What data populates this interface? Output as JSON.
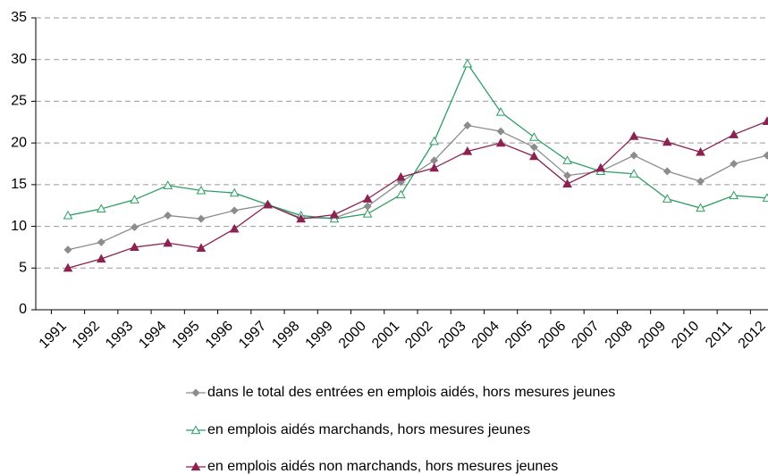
{
  "chart_data": {
    "type": "line",
    "categories": [
      "1991",
      "1992",
      "1993",
      "1994",
      "1995",
      "1996",
      "1997",
      "1998",
      "1999",
      "2000",
      "2001",
      "2002",
      "2003",
      "2004",
      "2005",
      "2006",
      "2007",
      "2008",
      "2009",
      "2010",
      "2011",
      "2012"
    ],
    "series": [
      {
        "name": "dans le total des entrées en emplois aidés, hors mesures jeunes",
        "color": "#8c8c8c",
        "marker": "diamond",
        "values": [
          7.2,
          8.1,
          9.9,
          11.3,
          10.9,
          11.9,
          12.6,
          11.0,
          11.0,
          12.4,
          15.3,
          17.9,
          22.1,
          21.4,
          19.5,
          16.1,
          16.6,
          18.5,
          16.6,
          15.4,
          17.5,
          18.5
        ]
      },
      {
        "name": "en emplois aidés marchands, hors mesures jeunes",
        "color": "#2e9e63",
        "marker": "triangle-open",
        "values": [
          11.3,
          12.1,
          13.2,
          14.9,
          14.3,
          14.0,
          12.6,
          11.3,
          10.9,
          11.5,
          13.8,
          20.2,
          29.5,
          23.7,
          20.7,
          17.9,
          16.6,
          16.3,
          13.3,
          12.2,
          13.7,
          13.4
        ]
      },
      {
        "name": "en emplois aidés non marchands, hors mesures jeunes",
        "color": "#8b2252",
        "marker": "triangle",
        "values": [
          5.0,
          6.1,
          7.5,
          8.0,
          7.4,
          9.7,
          12.6,
          10.9,
          11.4,
          13.3,
          15.9,
          17.0,
          19.0,
          20.0,
          18.4,
          15.1,
          17.0,
          20.8,
          20.1,
          18.9,
          21.0,
          22.6
        ]
      }
    ],
    "ylim": [
      0,
      35
    ],
    "yticks": [
      0,
      5,
      10,
      15,
      20,
      25,
      30,
      35
    ],
    "grid": true,
    "legend": "bottom"
  }
}
